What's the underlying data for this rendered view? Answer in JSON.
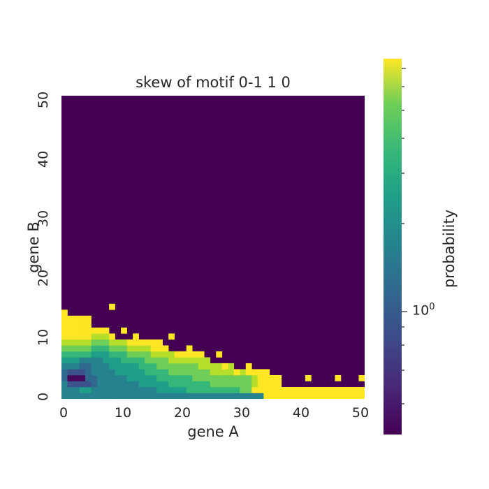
{
  "chart_data": {
    "type": "heatmap",
    "title": "skew of motif  0-1 1 0",
    "xlabel": "gene A",
    "ylabel": "gene B",
    "colorbar_label": "probability",
    "colorbar_tick": "10",
    "colorbar_tick_exp": "0",
    "colorbar_scale": "log",
    "colormap": "viridis",
    "xlim": [
      0,
      51
    ],
    "ylim": [
      0,
      51
    ],
    "x_ticks": [
      "0",
      "10",
      "20",
      "30",
      "40",
      "50"
    ],
    "y_ticks": [
      "0",
      "10",
      "20",
      "30",
      "40",
      "50"
    ],
    "grid": "none",
    "note_values": "levels 0..1 on viridis scale; 0 = background (deep purple)",
    "rows": [
      {
        "y": 0,
        "cells": "44444444444444444444444444444444449999999999999999"
      },
      {
        "y": 1,
        "cells": "44455444444444445555566666666677999999999999999999"
      },
      {
        "y": 2,
        "cells": "42222344444445555566666667777777899999999999999999"
      },
      {
        "y": 3,
        "cells": "31113344444555556666667777777777899999999999999999"
      },
      {
        "y": 4,
        "cells": "32223444455555666677777778888889999999999999999999"
      },
      {
        "y": 5,
        "cells": "44433444555556667777777888888899999999999999999999"
      },
      {
        "y": 6,
        "cells": "55544445556666777788888889999999999999999999999999"
      },
      {
        "y": 7,
        "cells": "6666655566677778888999999999999999999999999999999"
      },
      {
        "y": 8,
        "cells": "7777766677788889999999999999999999999999999999999"
      },
      {
        "y": 9,
        "cells": "8888877788899999999999999999999999999999999999999"
      },
      {
        "y": 10,
        "cells": "9999988899999999999999999999999999999999999999999"
      },
      {
        "y": 11,
        "cells": "9999999999999999999999999999999999999999999999999"
      },
      {
        "y": 12,
        "cells": "9999999999999999999999999999999999999999999999999"
      },
      {
        "y": 13,
        "cells": "9999999999999999999999999999999999999999999999999"
      },
      {
        "y": 14,
        "cells": "9999999999999999999999999999999999999999999999999"
      }
    ],
    "mask_columns_by_row": {
      "0": [
        0,
        51
      ],
      "1": [
        0,
        51
      ],
      "2": [
        0,
        37
      ],
      "3": [
        0,
        37
      ],
      "4": [
        0,
        35
      ],
      "5": [
        0,
        29
      ],
      "6": [
        0,
        25
      ],
      "7": [
        0,
        24
      ],
      "8": [
        0,
        18
      ],
      "9": [
        0,
        17
      ],
      "10": [
        0,
        9
      ],
      "11": [
        0,
        8
      ],
      "12": [
        0,
        5
      ],
      "13": [
        0,
        5
      ],
      "14": [
        0,
        1
      ]
    }
  }
}
